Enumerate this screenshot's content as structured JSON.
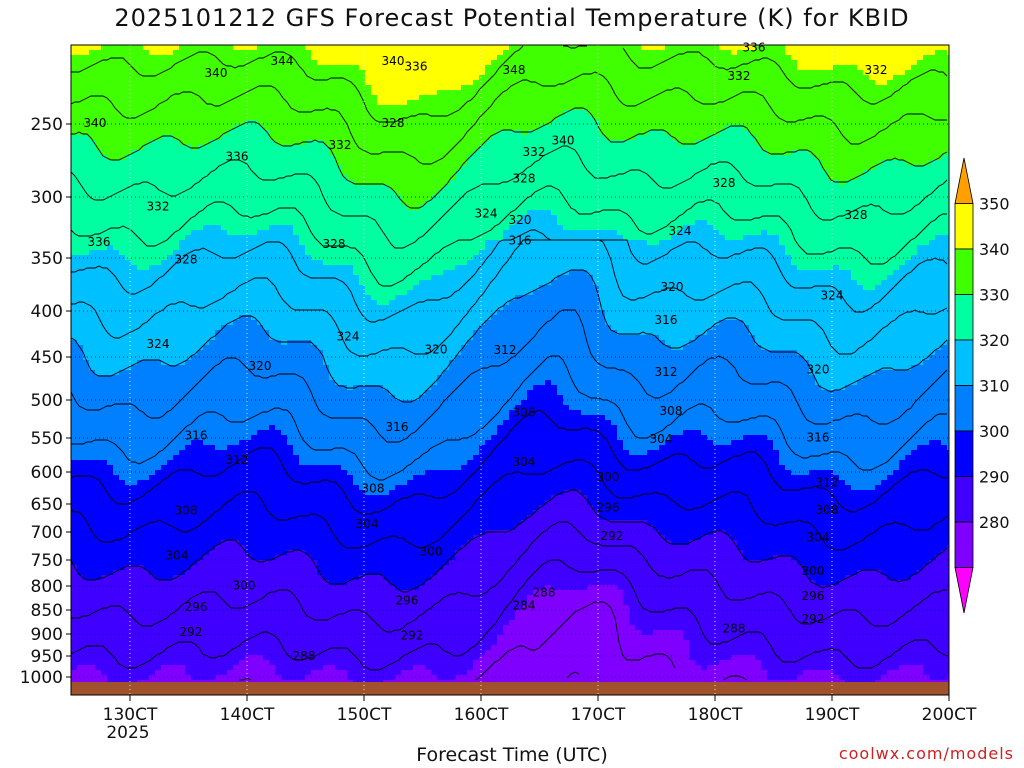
{
  "chart_data": {
    "type": "heatmap",
    "title": "2025101212 GFS Forecast Potential Temperature (K) for KBID",
    "xlabel": "Forecast Time (UTC)",
    "credit": "coolwx.com/models",
    "y_ticks": [
      "250",
      "300",
      "350",
      "400",
      "450",
      "500",
      "550",
      "600",
      "650",
      "700",
      "750",
      "800",
      "850",
      "900",
      "950",
      "1000"
    ],
    "x_ticks": [
      "130CT",
      "140CT",
      "150CT",
      "160CT",
      "170CT",
      "180CT",
      "190CT",
      "200CT"
    ],
    "x_year": "2025",
    "colorbar": {
      "labels": [
        "280",
        "290",
        "300",
        "310",
        "320",
        "330",
        "340",
        "350"
      ],
      "colors": [
        "#ff00ff",
        "#8000ff",
        "#4000ff",
        "#0000ff",
        "#0080ff",
        "#00c0ff",
        "#00ffa0",
        "#40ff00",
        "#ffff00",
        "#ffa000"
      ]
    },
    "contour_labels": [
      {
        "t": "344",
        "x": 282,
        "p": 225
      },
      {
        "t": "340",
        "x": 393,
        "p": 225
      },
      {
        "t": "336",
        "x": 416,
        "p": 232
      },
      {
        "t": "348",
        "x": 514,
        "p": 236
      },
      {
        "t": "340",
        "x": 216,
        "p": 240
      },
      {
        "t": "340",
        "x": 95,
        "p": 252
      },
      {
        "t": "328",
        "x": 393,
        "p": 252
      },
      {
        "t": "340",
        "x": 563,
        "p": 264
      },
      {
        "t": "332",
        "x": 340,
        "p": 267
      },
      {
        "t": "332",
        "x": 534,
        "p": 272
      },
      {
        "t": "336",
        "x": 237,
        "p": 275
      },
      {
        "t": "328",
        "x": 524,
        "p": 290
      },
      {
        "t": "328",
        "x": 724,
        "p": 293
      },
      {
        "t": "336",
        "x": 754,
        "p": 208
      },
      {
        "t": "332",
        "x": 739,
        "p": 244
      },
      {
        "t": "332",
        "x": 876,
        "p": 236
      },
      {
        "t": "332",
        "x": 158,
        "p": 311
      },
      {
        "t": "324",
        "x": 486,
        "p": 317
      },
      {
        "t": "320",
        "x": 520,
        "p": 322
      },
      {
        "t": "328",
        "x": 856,
        "p": 318
      },
      {
        "t": "324",
        "x": 680,
        "p": 331
      },
      {
        "t": "336",
        "x": 99,
        "p": 340
      },
      {
        "t": "316",
        "x": 520,
        "p": 339
      },
      {
        "t": "328",
        "x": 334,
        "p": 342
      },
      {
        "t": "328",
        "x": 186,
        "p": 355
      },
      {
        "t": "320",
        "x": 672,
        "p": 381
      },
      {
        "t": "324",
        "x": 832,
        "p": 389
      },
      {
        "t": "316",
        "x": 666,
        "p": 414
      },
      {
        "t": "324",
        "x": 348,
        "p": 432
      },
      {
        "t": "324",
        "x": 158,
        "p": 440
      },
      {
        "t": "320",
        "x": 436,
        "p": 446
      },
      {
        "t": "312",
        "x": 505,
        "p": 447
      },
      {
        "t": "320",
        "x": 260,
        "p": 465
      },
      {
        "t": "312",
        "x": 666,
        "p": 472
      },
      {
        "t": "320",
        "x": 818,
        "p": 469
      },
      {
        "t": "308",
        "x": 524,
        "p": 522
      },
      {
        "t": "308",
        "x": 671,
        "p": 520
      },
      {
        "t": "316",
        "x": 397,
        "p": 541
      },
      {
        "t": "316",
        "x": 196,
        "p": 552
      },
      {
        "t": "304",
        "x": 661,
        "p": 557
      },
      {
        "t": "316",
        "x": 818,
        "p": 555
      },
      {
        "t": "312",
        "x": 237,
        "p": 588
      },
      {
        "t": "304",
        "x": 524,
        "p": 591
      },
      {
        "t": "300",
        "x": 608,
        "p": 614
      },
      {
        "t": "312",
        "x": 827,
        "p": 623
      },
      {
        "t": "308",
        "x": 373,
        "p": 632
      },
      {
        "t": "296",
        "x": 608,
        "p": 663
      },
      {
        "t": "308",
        "x": 186,
        "p": 669
      },
      {
        "t": "308",
        "x": 827,
        "p": 668
      },
      {
        "t": "304",
        "x": 367,
        "p": 693
      },
      {
        "t": "292",
        "x": 612,
        "p": 714
      },
      {
        "t": "304",
        "x": 818,
        "p": 717
      },
      {
        "t": "300",
        "x": 431,
        "p": 742
      },
      {
        "t": "304",
        "x": 177,
        "p": 749
      },
      {
        "t": "300",
        "x": 813,
        "p": 779
      },
      {
        "t": "300",
        "x": 244,
        "p": 807
      },
      {
        "t": "288",
        "x": 544,
        "p": 822
      },
      {
        "t": "296",
        "x": 813,
        "p": 829
      },
      {
        "t": "296",
        "x": 407,
        "p": 839
      },
      {
        "t": "284",
        "x": 524,
        "p": 849
      },
      {
        "t": "296",
        "x": 196,
        "p": 852
      },
      {
        "t": "292",
        "x": 813,
        "p": 877
      },
      {
        "t": "288",
        "x": 734,
        "p": 897
      },
      {
        "t": "292",
        "x": 191,
        "p": 904
      },
      {
        "t": "292",
        "x": 412,
        "p": 913
      },
      {
        "t": "288",
        "x": 304,
        "p": 960
      }
    ]
  }
}
